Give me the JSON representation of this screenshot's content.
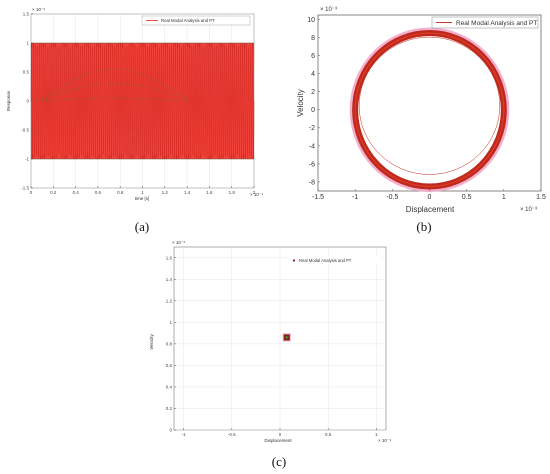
{
  "chart_data": [
    {
      "type": "line",
      "panel_label": "(a)",
      "xlabel": "time [s]",
      "ylabel": "Response",
      "x_exponent": "× 10⁻⁴",
      "y_exponent": "× 10⁻⁹",
      "xlim": [
        0,
        2
      ],
      "ylim": [
        -1.5,
        1.5
      ],
      "xticks": [
        "0",
        "0.2",
        "0.4",
        "0.6",
        "0.8",
        "1",
        "1.2",
        "1.4",
        "1.6",
        "1.8",
        "2"
      ],
      "yticks": [
        "1.5",
        "1",
        "0.5",
        "0",
        "-0.5",
        "-1",
        "-1.5"
      ],
      "legend": "Real Modal Analysis and PT",
      "legend_position": "top-right",
      "series": [
        {
          "name": "Real Modal Analysis and PT",
          "amplitude": 1.0,
          "color": "#e8211b"
        }
      ]
    },
    {
      "type": "line",
      "panel_label": "(b)",
      "xlabel": "Displacement",
      "ylabel": "Velocity",
      "x_exponent": "× 10⁻³",
      "y_exponent": "× 10⁻³",
      "xlim": [
        -1.5,
        1.5
      ],
      "ylim": [
        -9,
        10.5
      ],
      "xticks": [
        "-1.5",
        "-1",
        "-0.5",
        "0",
        "0.5",
        "1",
        "1.5"
      ],
      "yticks": [
        "10",
        "8",
        "6",
        "4",
        "2",
        "0",
        "-2",
        "-4",
        "-6",
        "-8"
      ],
      "legend": "Real Modal Analysis and PT",
      "legend_position": "top-right",
      "series": [
        {
          "name": "Real Modal Analysis and PT",
          "x_amplitude": 1.0,
          "y_amplitude": 8.5,
          "color": "#c0281c"
        }
      ]
    },
    {
      "type": "scatter",
      "panel_label": "(c)",
      "xlabel": "Displacement",
      "ylabel": "Velocity",
      "x_exponent": "× 10⁻⁴",
      "y_exponent": "× 10⁻⁴",
      "xlim": [
        -1.1,
        1.1
      ],
      "ylim": [
        0,
        1.7
      ],
      "xticks": [
        "-1",
        "-0.5",
        "0",
        "0.5",
        "1"
      ],
      "yticks": [
        "1.6",
        "1.4",
        "1.2",
        "1",
        "0.8",
        "0.6",
        "0.4",
        "0.2",
        "0"
      ],
      "legend": "Real Modal Analysis and PT",
      "legend_position": "top-right",
      "series": [
        {
          "name": "Real Modal Analysis and PT",
          "x": 0.07,
          "y": 0.86,
          "color": "#8b1a10"
        }
      ]
    }
  ]
}
